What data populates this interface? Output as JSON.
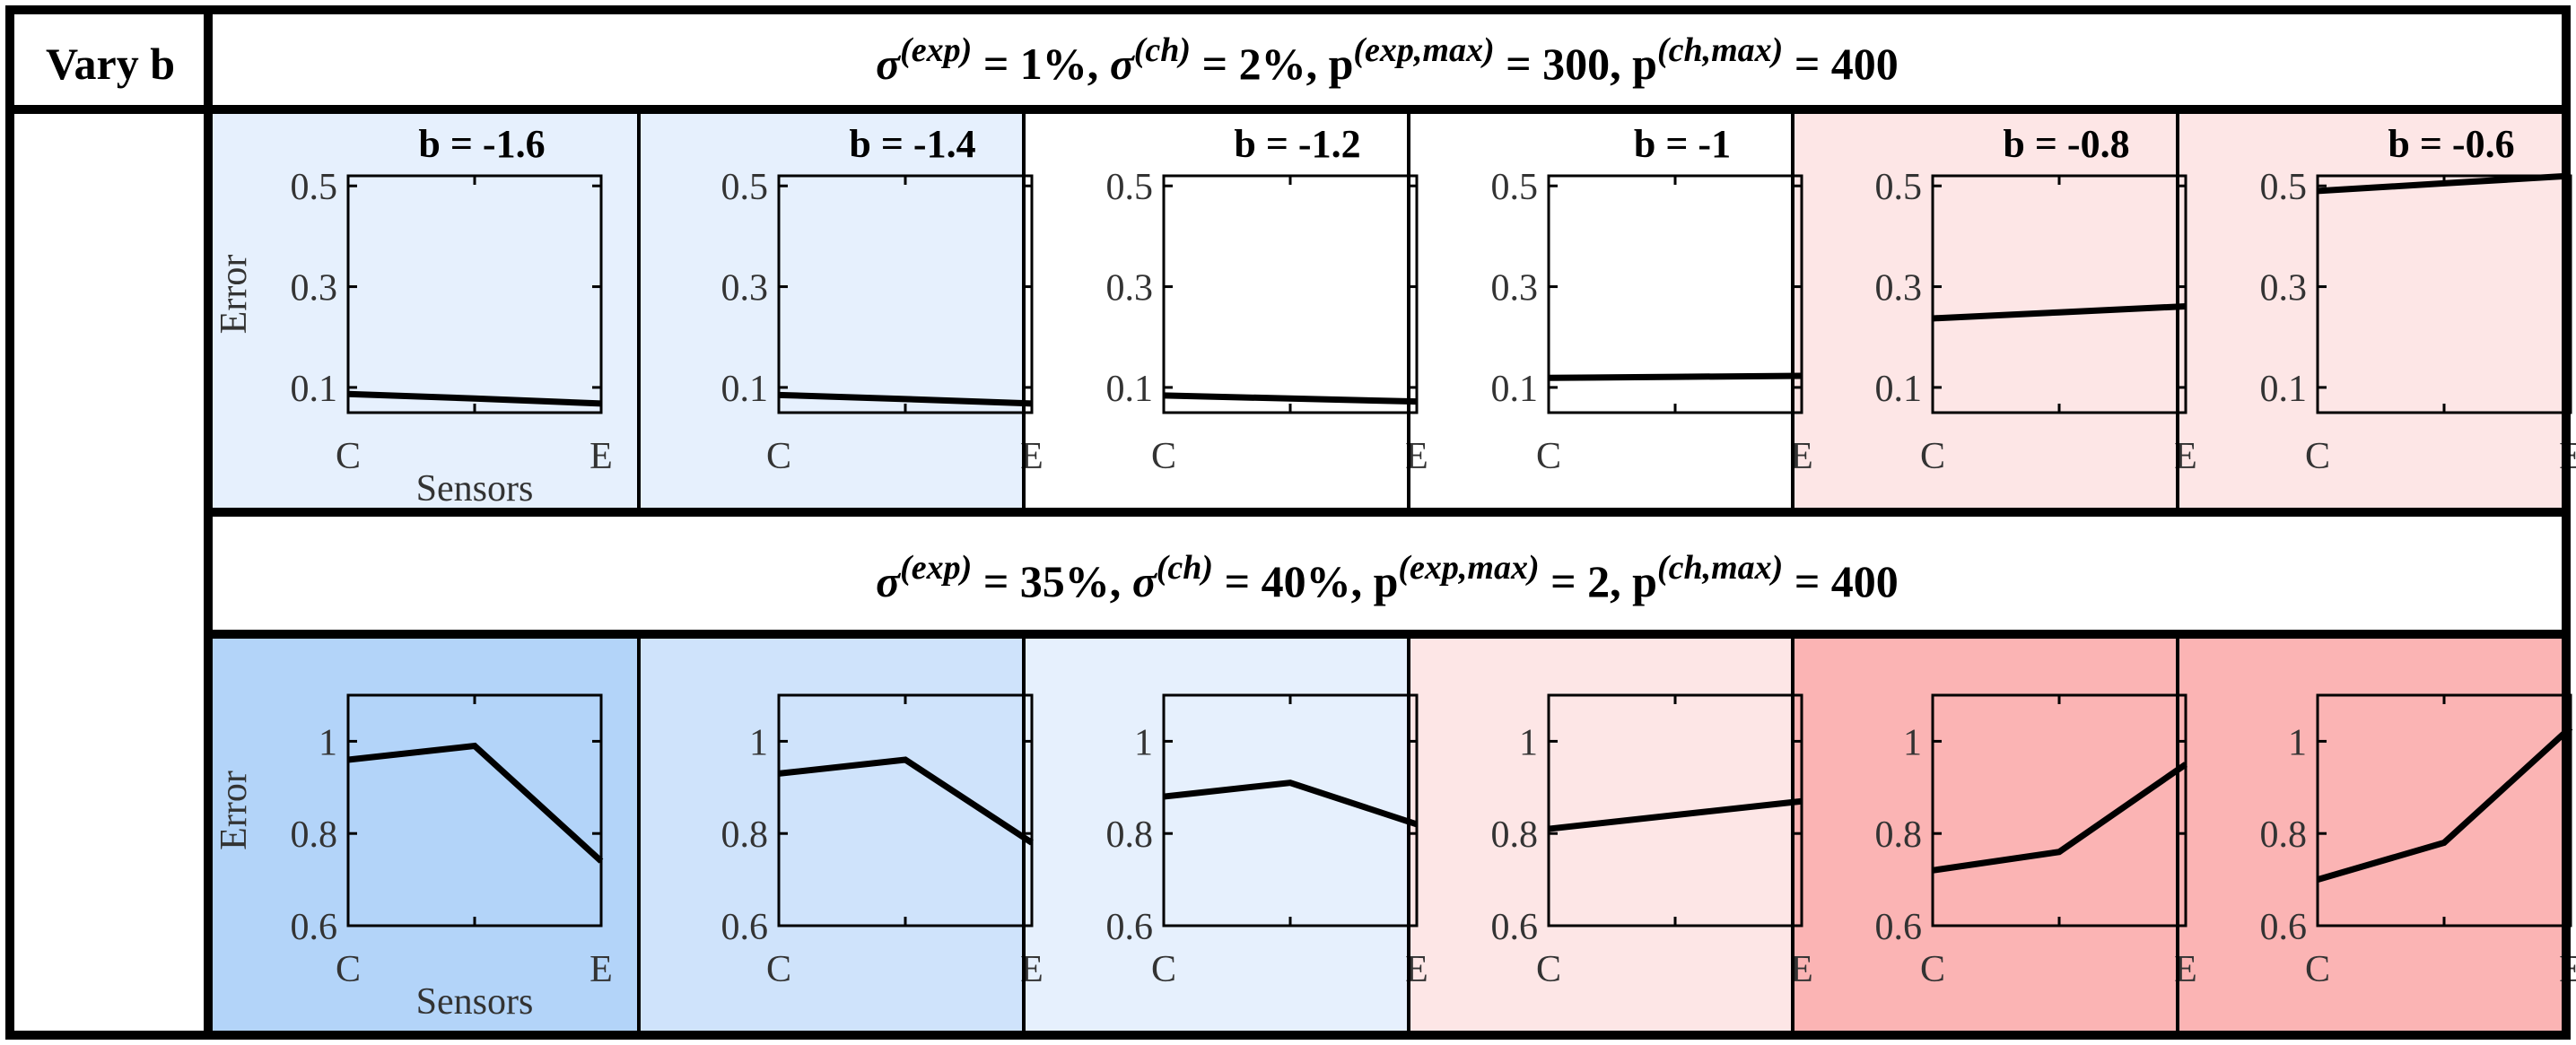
{
  "corner_label": "Vary b",
  "panels": [
    {
      "parts": [
        {
          "t": "σ",
          "it": true,
          "sup": false
        },
        {
          "t": "(exp)",
          "it": true,
          "sup": true
        },
        {
          "t": " = 1%,  ",
          "it": false,
          "sup": false
        },
        {
          "t": "σ",
          "it": true,
          "sup": false
        },
        {
          "t": "(ch)",
          "it": true,
          "sup": true
        },
        {
          "t": " = 2%,  p",
          "it": false,
          "sup": false
        },
        {
          "t": "(exp,max)",
          "it": true,
          "sup": true
        },
        {
          "t": " = 300,  p",
          "it": false,
          "sup": false
        },
        {
          "t": "(ch,max)",
          "it": true,
          "sup": true
        },
        {
          "t": " = 400",
          "it": false,
          "sup": false
        }
      ]
    },
    {
      "parts": [
        {
          "t": "σ",
          "it": true,
          "sup": false
        },
        {
          "t": "(exp)",
          "it": true,
          "sup": true
        },
        {
          "t": " = 35%,  ",
          "it": false,
          "sup": false
        },
        {
          "t": "σ",
          "it": true,
          "sup": false
        },
        {
          "t": "(ch)",
          "it": true,
          "sup": true
        },
        {
          "t": " = 40%,  p",
          "it": false,
          "sup": false
        },
        {
          "t": "(exp,max)",
          "it": true,
          "sup": true
        },
        {
          "t": " = 2,  p",
          "it": false,
          "sup": false
        },
        {
          "t": "(ch,max)",
          "it": true,
          "sup": true
        },
        {
          "t": " = 400",
          "it": false,
          "sup": false
        }
      ]
    }
  ],
  "column_titles": [
    "b = -1.6",
    "b = -1.4",
    "b = -1.2",
    "b = -1",
    "b = -0.8",
    "b = -0.6"
  ],
  "cell_colors": [
    [
      "#e6f0fd",
      "#e6f0fd",
      "#ffffff",
      "#ffffff",
      "#fde6e6",
      "#fde6e6"
    ],
    [
      "#b3d4f9",
      "#cfe3fb",
      "#e6f0fd",
      "#fde6e6",
      "#fbb4b4",
      "#fbb4b4"
    ]
  ],
  "chart_data": [
    {
      "type": "line",
      "row": 1,
      "x": [
        "C",
        "",
        "E"
      ],
      "xlabel": "Sensors",
      "ylabel": "Error",
      "ylim": [
        0.05,
        0.52
      ],
      "yticks": [
        0.1,
        0.3,
        0.5
      ],
      "ytick_labels": [
        "0.1",
        "0.3",
        "0.5"
      ],
      "series": [
        {
          "values": [
            0.087,
            0.078,
            0.068
          ]
        },
        {
          "values": [
            0.085,
            0.077,
            0.068
          ]
        },
        {
          "values": [
            0.084,
            0.078,
            0.072
          ]
        },
        {
          "values": [
            0.119,
            0.121,
            0.123
          ]
        },
        {
          "values": [
            0.237,
            0.249,
            0.261
          ]
        },
        {
          "values": [
            0.49,
            0.505,
            0.52
          ]
        }
      ]
    },
    {
      "type": "line",
      "row": 2,
      "x": [
        "C",
        "",
        "E"
      ],
      "xlabel": "Sensors",
      "ylabel": "Error",
      "ylim": [
        0.6,
        1.1
      ],
      "yticks": [
        0.6,
        0.8,
        1.0
      ],
      "ytick_labels": [
        "0.6",
        "0.8",
        "1"
      ],
      "series": [
        {
          "values": [
            0.96,
            0.99,
            0.74
          ]
        },
        {
          "values": [
            0.93,
            0.96,
            0.78
          ]
        },
        {
          "values": [
            0.88,
            0.91,
            0.82
          ]
        },
        {
          "values": [
            0.81,
            0.84,
            0.87
          ]
        },
        {
          "values": [
            0.72,
            0.76,
            0.95
          ]
        },
        {
          "values": [
            0.7,
            0.78,
            1.03
          ]
        }
      ]
    }
  ]
}
